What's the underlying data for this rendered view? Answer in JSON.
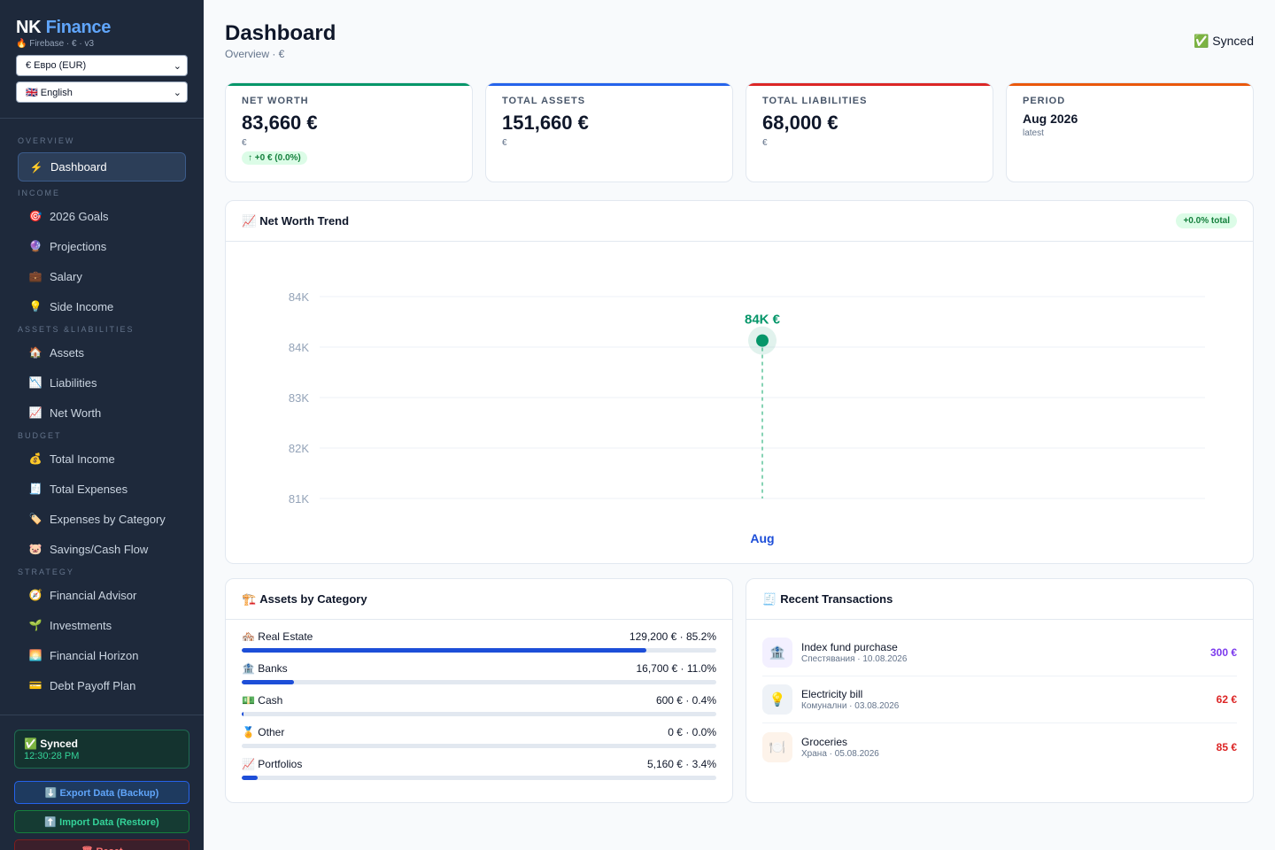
{
  "sidebar": {
    "brand": {
      "name_a": "NK",
      "name_b": "Finance",
      "sub": "🔥 Firebase · € · v3"
    },
    "currency_select": "€ Евро (EUR)",
    "language_select": "🇬🇧 English",
    "sections": {
      "overview": "OVERVIEW",
      "income": "INCOME",
      "assets_liabilities": "ASSETS &LIABILITIES",
      "budget": "BUDGET",
      "strategy": "STRATEGY"
    },
    "items": {
      "dashboard": {
        "icon": "⚡",
        "label": "Dashboard"
      },
      "goals": {
        "icon": "🎯",
        "label": "2026 Goals"
      },
      "projections": {
        "icon": "🔮",
        "label": "Projections"
      },
      "salary": {
        "icon": "💼",
        "label": "Salary"
      },
      "side_income": {
        "icon": "💡",
        "label": "Side Income"
      },
      "assets": {
        "icon": "🏠",
        "label": "Assets"
      },
      "liabilities": {
        "icon": "📉",
        "label": "Liabilities"
      },
      "net_worth": {
        "icon": "📈",
        "label": "Net Worth"
      },
      "total_income": {
        "icon": "💰",
        "label": "Total Income"
      },
      "total_expenses": {
        "icon": "🧾",
        "label": "Total Expenses"
      },
      "expenses_by_category": {
        "icon": "🏷️",
        "label": "Expenses by Category"
      },
      "savings": {
        "icon": "🐷",
        "label": "Savings/Cash Flow"
      },
      "advisor": {
        "icon": "🧭",
        "label": "Financial Advisor"
      },
      "investments": {
        "icon": "🌱",
        "label": "Investments"
      },
      "horizon": {
        "icon": "🌅",
        "label": "Financial Horizon"
      },
      "debt": {
        "icon": "💳",
        "label": "Debt Payoff Plan"
      }
    },
    "status": {
      "title": "✅ Synced",
      "time": "12:30:28 PM"
    },
    "buttons": {
      "export": "⬇️ Export Data (Backup)",
      "import": "⬆️ Import Data (Restore)",
      "reset": "🗑 Reset"
    }
  },
  "header": {
    "title": "Dashboard",
    "subtitle": "Overview · €",
    "sync": "✅ Synced"
  },
  "kpis": [
    {
      "label": "NET WORTH",
      "value": "83,660 €",
      "unit": "€",
      "change": "↑ +0 € (0.0%)",
      "color": "#059669"
    },
    {
      "label": "TOTAL ASSETS",
      "value": "151,660 €",
      "unit": "€",
      "color": "#2563eb"
    },
    {
      "label": "TOTAL LIABILITIES",
      "value": "68,000 €",
      "unit": "€",
      "color": "#dc2626"
    },
    {
      "label": "PERIOD",
      "value": "Aug 2026",
      "unit": "latest",
      "color": "#ea580c"
    }
  ],
  "trend": {
    "icon": "📈",
    "title": "Net Worth Trend",
    "badge": "+0.0% total"
  },
  "chart_data": {
    "type": "line",
    "title": "Net Worth Trend",
    "categories": [
      "Aug"
    ],
    "series": [
      {
        "values": [
          83660
        ]
      }
    ],
    "data_labels": [
      "84K €"
    ],
    "ytick_labels": [
      "84K",
      "84K",
      "83K",
      "82K",
      "81K"
    ],
    "ylim": [
      81000,
      84400
    ],
    "grid": true,
    "color": "#059669"
  },
  "assets_card": {
    "icon": "🏗️",
    "title": "Assets by Category",
    "rows": [
      {
        "icon": "🏘️",
        "name": "Real Estate",
        "value": "129,200 € · 85.2%",
        "pct": 85.2
      },
      {
        "icon": "🏦",
        "name": "Banks",
        "value": "16,700 € · 11.0%",
        "pct": 11.0
      },
      {
        "icon": "💵",
        "name": "Cash",
        "value": "600 € · 0.4%",
        "pct": 0.4
      },
      {
        "icon": "🏅",
        "name": "Other",
        "value": "0 € · 0.0%",
        "pct": 0.0
      },
      {
        "icon": "📈",
        "name": "Portfolios",
        "value": "5,160 € · 3.4%",
        "pct": 3.4
      }
    ]
  },
  "transactions": {
    "icon": "🧾",
    "title": "Recent Transactions",
    "rows": [
      {
        "icon": "🏦",
        "name": "Index fund purchase",
        "meta": "Спестявания · 10.08.2026",
        "amount": "300 €",
        "color": "#7c3aed",
        "bg": "#f3f0ff"
      },
      {
        "icon": "💡",
        "name": "Electricity bill",
        "meta": "Комунални · 03.08.2026",
        "amount": "62 €",
        "color": "#dc2626",
        "bg": "#eef2f7"
      },
      {
        "icon": "🍽️",
        "name": "Groceries",
        "meta": "Храна · 05.08.2026",
        "amount": "85 €",
        "color": "#dc2626",
        "bg": "#fdf3ea"
      }
    ]
  }
}
